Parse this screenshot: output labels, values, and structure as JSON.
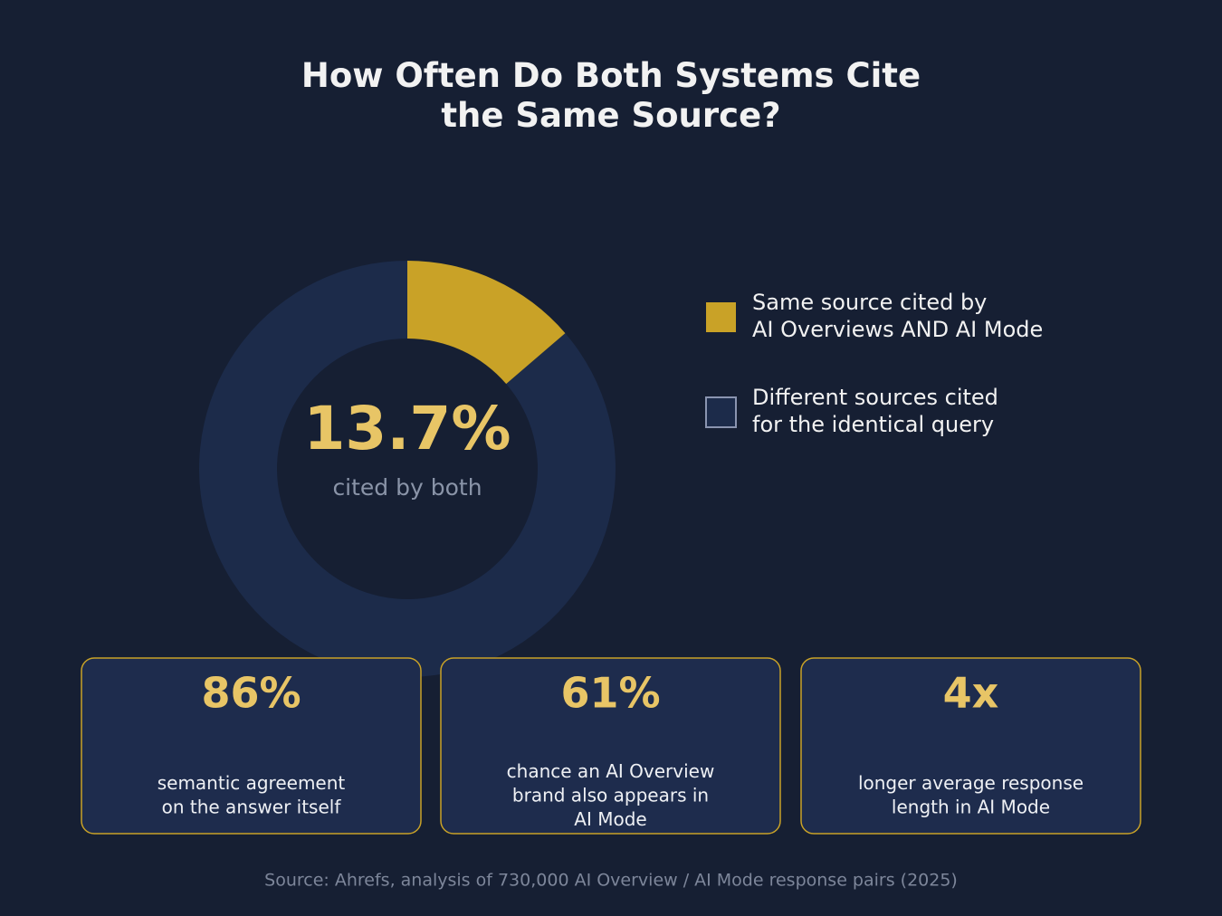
{
  "chart_data": {
    "type": "donut",
    "title": "How Often Do Both Systems Cite\nthe Same Source?",
    "categories": [
      "Same source cited by\nAI Overviews AND AI Mode",
      "Different sources cited\nfor the identical query"
    ],
    "values": [
      13.7,
      86.3
    ],
    "value_labels": [
      "13.7%",
      null
    ],
    "center_caption": "cited by both",
    "colors": [
      "#c9a227",
      "#1c2b4a"
    ],
    "legend": "right"
  },
  "stats": [
    {
      "value": "86%",
      "label": "semantic agreement\non the answer itself"
    },
    {
      "value": "61%",
      "label": "chance an AI Overview\nbrand also appears in\nAI Mode"
    },
    {
      "value": "4x",
      "label": "longer average response\nlength in AI Mode"
    }
  ],
  "source": "Source: Ahrefs, analysis of 730,000 AI Overview / AI Mode response pairs (2025)"
}
